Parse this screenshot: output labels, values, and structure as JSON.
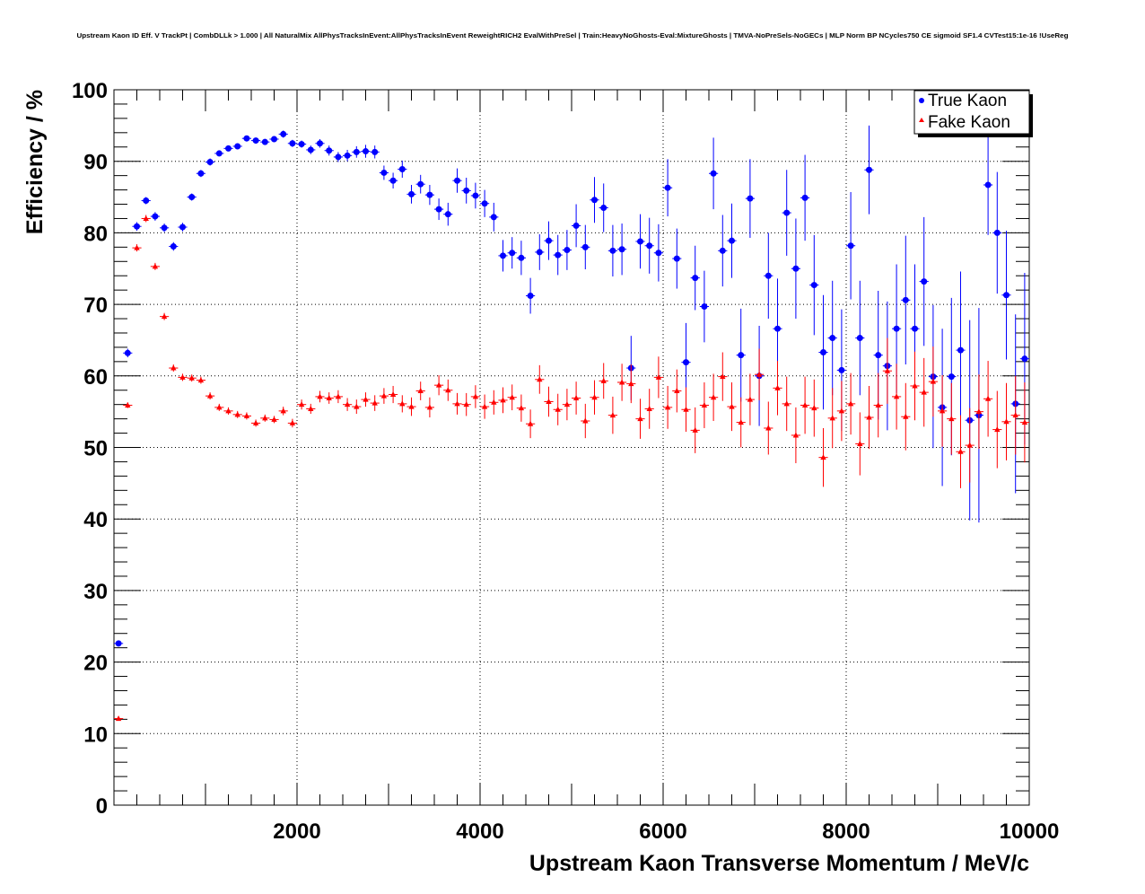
{
  "chart_data": {
    "type": "scatter",
    "title": "Upstream Kaon ID Eff. V TrackPt | CombDLLk > 1.000 | All NaturalMix AllPhysTracksInEvent:AllPhysTracksInEvent ReweightRICH2 EvalWithPreSel | Train:HeavyNoGhosts-Eval:MixtureGhosts | TMVA-NoPreSels-NoGECs | MLP Norm BP NCycles750 CE sigmoid SF1.4 CVTest15:1e-16 !UseReg",
    "xlabel": "Upstream Kaon Transverse Momentum / MeV/c",
    "ylabel": "Efficiency / %",
    "xlim": [
      0,
      10000
    ],
    "ylim": [
      0,
      100
    ],
    "x_ticks": [
      "2000",
      "4000",
      "6000",
      "8000",
      "10000"
    ],
    "y_ticks": [
      "0",
      "10",
      "20",
      "30",
      "40",
      "50",
      "60",
      "70",
      "80",
      "90",
      "100"
    ],
    "grid": true,
    "legend_position": "top-right",
    "series": [
      {
        "name": "True Kaon",
        "color": "#0000ff",
        "marker": "circle",
        "x": [
          50,
          150,
          250,
          350,
          450,
          550,
          650,
          750,
          850,
          950,
          1050,
          1150,
          1250,
          1350,
          1450,
          1550,
          1650,
          1750,
          1850,
          1950,
          2050,
          2150,
          2250,
          2350,
          2450,
          2550,
          2650,
          2750,
          2850,
          2950,
          3050,
          3150,
          3250,
          3350,
          3450,
          3550,
          3650,
          3750,
          3850,
          3950,
          4050,
          4150,
          4250,
          4350,
          4450,
          4550,
          4650,
          4750,
          4850,
          4950,
          5050,
          5150,
          5250,
          5350,
          5450,
          5550,
          5650,
          5750,
          5850,
          5950,
          6050,
          6150,
          6250,
          6350,
          6450,
          6550,
          6650,
          6750,
          6850,
          6950,
          7050,
          7150,
          7250,
          7350,
          7450,
          7550,
          7650,
          7750,
          7850,
          7950,
          8050,
          8150,
          8250,
          8350,
          8450,
          8550,
          8650,
          8750,
          8850,
          8950,
          9050,
          9150,
          9250,
          9350,
          9450,
          9550,
          9650,
          9750,
          9850,
          9950
        ],
        "y": [
          22.6,
          63.2,
          80.9,
          84.5,
          82.3,
          80.7,
          78.1,
          80.8,
          85.0,
          88.3,
          89.9,
          91.1,
          91.8,
          92.1,
          93.2,
          92.9,
          92.7,
          93.1,
          93.8,
          92.5,
          92.4,
          91.6,
          92.5,
          91.5,
          90.6,
          90.8,
          91.3,
          91.4,
          91.3,
          88.4,
          87.3,
          88.9,
          85.4,
          86.8,
          85.3,
          83.3,
          82.6,
          87.3,
          85.9,
          85.2,
          84.1,
          82.2,
          76.8,
          77.2,
          76.5,
          71.2,
          77.3,
          78.9,
          76.9,
          77.6,
          81.0,
          78.0,
          84.6,
          83.5,
          77.5,
          77.7,
          61.1,
          78.8,
          78.2,
          77.2,
          86.3,
          76.4,
          61.9,
          73.7,
          69.7,
          88.3,
          77.5,
          78.9,
          62.9,
          84.8,
          60.0,
          74.0,
          66.6,
          82.8,
          75.0,
          84.9,
          72.7,
          63.3,
          65.3,
          60.8,
          78.2,
          65.3,
          88.8,
          62.9,
          61.4,
          66.6,
          70.6,
          66.6,
          73.2,
          59.9,
          55.6,
          59.9,
          63.6,
          53.8,
          54.5,
          86.7,
          80.0,
          71.3,
          56.1,
          62.4
        ],
        "error": [
          0.4,
          0.6,
          0.6,
          0.5,
          0.6,
          0.6,
          0.6,
          0.6,
          0.5,
          0.5,
          0.5,
          0.4,
          0.4,
          0.4,
          0.4,
          0.4,
          0.4,
          0.4,
          0.5,
          0.5,
          0.5,
          0.6,
          0.6,
          0.7,
          0.7,
          0.8,
          0.8,
          0.9,
          0.9,
          1.0,
          1.1,
          1.2,
          1.3,
          1.3,
          1.4,
          1.5,
          1.6,
          1.7,
          1.8,
          1.8,
          1.9,
          2.0,
          2.2,
          2.2,
          2.4,
          2.5,
          2.5,
          2.7,
          2.8,
          2.8,
          3.0,
          3.1,
          3.2,
          3.4,
          3.6,
          3.6,
          4.5,
          3.8,
          3.9,
          4.0,
          4.0,
          4.2,
          5.5,
          4.5,
          5.0,
          5.0,
          5.0,
          5.2,
          6.5,
          5.5,
          7.0,
          6.0,
          7.0,
          6.0,
          7.0,
          6.0,
          7.0,
          8.0,
          8.0,
          8.5,
          7.5,
          8.0,
          6.2,
          9.0,
          9.0,
          9.0,
          9.0,
          9.0,
          9.0,
          10.0,
          11.0,
          11.0,
          11.0,
          14.0,
          15.0,
          7.0,
          8.5,
          9.0,
          12.5,
          12.0
        ]
      },
      {
        "name": "Fake Kaon",
        "color": "#ff0000",
        "marker": "triangle",
        "x": [
          50,
          150,
          250,
          350,
          450,
          550,
          650,
          750,
          850,
          950,
          1050,
          1150,
          1250,
          1350,
          1450,
          1550,
          1650,
          1750,
          1850,
          1950,
          2050,
          2150,
          2250,
          2350,
          2450,
          2550,
          2650,
          2750,
          2850,
          2950,
          3050,
          3150,
          3250,
          3350,
          3450,
          3550,
          3650,
          3750,
          3850,
          3950,
          4050,
          4150,
          4250,
          4350,
          4450,
          4550,
          4650,
          4750,
          4850,
          4950,
          5050,
          5150,
          5250,
          5350,
          5450,
          5550,
          5650,
          5750,
          5850,
          5950,
          6050,
          6150,
          6250,
          6350,
          6450,
          6550,
          6650,
          6750,
          6850,
          6950,
          7050,
          7150,
          7250,
          7350,
          7450,
          7550,
          7650,
          7750,
          7850,
          7950,
          8050,
          8150,
          8250,
          8350,
          8450,
          8550,
          8650,
          8750,
          8850,
          8950,
          9050,
          9150,
          9250,
          9350,
          9450,
          9550,
          9650,
          9750,
          9850,
          9950
        ],
        "y": [
          12.1,
          55.9,
          77.9,
          82.0,
          75.3,
          68.3,
          61.1,
          59.8,
          59.7,
          59.4,
          57.2,
          55.6,
          55.1,
          54.6,
          54.4,
          53.4,
          54.1,
          53.9,
          55.1,
          53.4,
          56.0,
          55.4,
          57.1,
          56.9,
          57.1,
          56.0,
          55.7,
          56.7,
          56.2,
          57.2,
          57.4,
          56.1,
          55.7,
          57.9,
          55.6,
          58.7,
          58.0,
          56.1,
          56.0,
          57.1,
          55.7,
          56.3,
          56.6,
          57.0,
          55.5,
          53.3,
          59.5,
          56.4,
          55.3,
          56.0,
          56.9,
          53.7,
          57.0,
          59.3,
          54.5,
          59.1,
          58.9,
          54.0,
          55.4,
          59.8,
          55.6,
          57.9,
          55.3,
          52.4,
          55.9,
          57.0,
          59.9,
          55.7,
          53.5,
          56.7,
          60.2,
          52.7,
          58.3,
          56.1,
          51.7,
          55.9,
          55.5,
          48.6,
          54.1,
          55.1,
          56.1,
          50.5,
          54.2,
          55.9,
          60.7,
          57.1,
          54.3,
          58.6,
          57.7,
          59.2,
          55.1,
          54.0,
          49.4,
          50.3,
          55.0,
          56.8,
          52.5,
          53.6,
          54.5,
          53.5
        ],
        "error": [
          0.3,
          0.4,
          0.5,
          0.5,
          0.5,
          0.5,
          0.5,
          0.5,
          0.5,
          0.5,
          0.5,
          0.5,
          0.5,
          0.5,
          0.5,
          0.5,
          0.5,
          0.5,
          0.6,
          0.6,
          0.7,
          0.7,
          0.8,
          0.8,
          0.9,
          0.9,
          1.0,
          1.0,
          1.1,
          1.1,
          1.2,
          1.2,
          1.3,
          1.3,
          1.4,
          1.4,
          1.5,
          1.5,
          1.6,
          1.6,
          1.7,
          1.7,
          1.8,
          1.8,
          1.9,
          2.0,
          2.0,
          2.1,
          2.2,
          2.2,
          2.3,
          2.4,
          2.4,
          2.5,
          2.6,
          2.6,
          2.7,
          2.8,
          2.8,
          2.9,
          3.0,
          3.0,
          3.1,
          3.2,
          3.2,
          3.3,
          3.4,
          3.4,
          3.5,
          3.6,
          3.6,
          3.7,
          3.8,
          3.8,
          3.9,
          4.0,
          4.0,
          4.1,
          4.2,
          4.2,
          4.3,
          4.4,
          4.4,
          4.5,
          4.6,
          4.6,
          4.7,
          4.8,
          4.8,
          4.9,
          5.0,
          5.0,
          5.1,
          5.2,
          5.2,
          5.3,
          5.4,
          5.4,
          5.5,
          5.6
        ]
      }
    ]
  }
}
